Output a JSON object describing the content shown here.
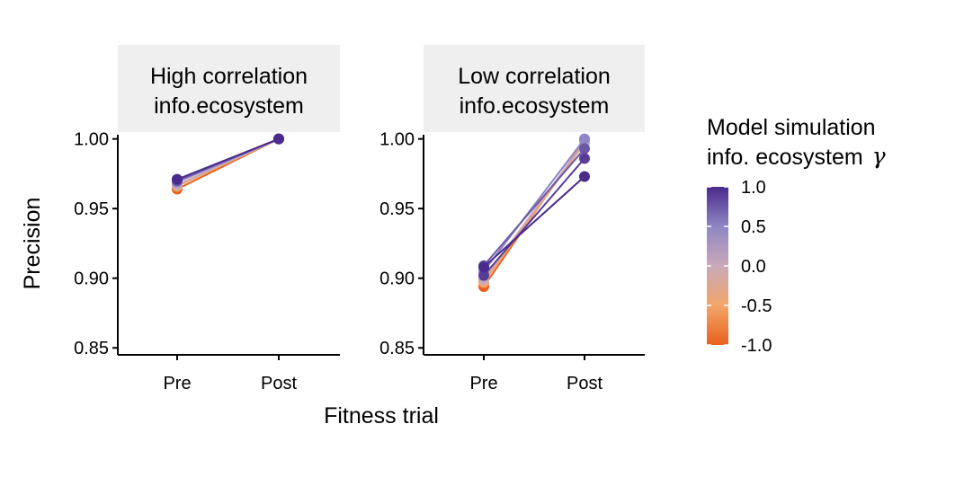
{
  "chart_data": {
    "type": "line",
    "xlabel": "Fitness trial",
    "ylabel": "Precision",
    "categories": [
      "Pre",
      "Post"
    ],
    "ylim": [
      0.845,
      1.003
    ],
    "yticks": [
      0.85,
      0.9,
      0.95,
      1.0
    ],
    "ytick_labels": [
      "0.85",
      "0.90",
      "0.95",
      "1.00"
    ],
    "grid": false,
    "legend": {
      "title_line1": "Model simulation",
      "title_line2": "info. ecosystem",
      "title_symbol": "γ",
      "position": "right",
      "ticks": [
        1.0,
        0.5,
        0.0,
        -0.5,
        -1.0
      ],
      "tick_labels": [
        "1.0",
        "0.5",
        "0.0",
        "-0.5",
        "-1.0"
      ],
      "range": [
        -1.0,
        1.0
      ],
      "colors": {
        "low": "#e8601c",
        "mid_low": "#f2a66a",
        "mid": "#c9a8b8",
        "mid_high": "#8f86c4",
        "high": "#4a2a8a"
      }
    },
    "panels": [
      {
        "title_line1": "High correlation",
        "title_line2": "info.ecosystem",
        "series": [
          {
            "gamma": -1.0,
            "values": [
              0.964,
              1.0
            ]
          },
          {
            "gamma": -0.5,
            "values": [
              0.966,
              1.0
            ]
          },
          {
            "gamma": 0.0,
            "values": [
              0.967,
              1.0
            ]
          },
          {
            "gamma": 0.5,
            "values": [
              0.969,
              1.0
            ]
          },
          {
            "gamma": 0.75,
            "values": [
              0.97,
              1.0
            ]
          },
          {
            "gamma": 1.0,
            "values": [
              0.971,
              1.0
            ]
          }
        ]
      },
      {
        "title_line1": "Low correlation",
        "title_line2": "info.ecosystem",
        "series": [
          {
            "gamma": -1.0,
            "values": [
              0.894,
              0.999
            ]
          },
          {
            "gamma": -0.5,
            "values": [
              0.897,
              0.997
            ]
          },
          {
            "gamma": 0.0,
            "values": [
              0.899,
              0.998
            ]
          },
          {
            "gamma": 0.5,
            "values": [
              0.905,
              1.0
            ]
          },
          {
            "gamma": 0.75,
            "values": [
              0.909,
              0.993
            ]
          },
          {
            "gamma": 0.9,
            "values": [
              0.902,
              0.986
            ]
          },
          {
            "gamma": 1.0,
            "values": [
              0.908,
              0.973
            ]
          }
        ]
      }
    ]
  }
}
